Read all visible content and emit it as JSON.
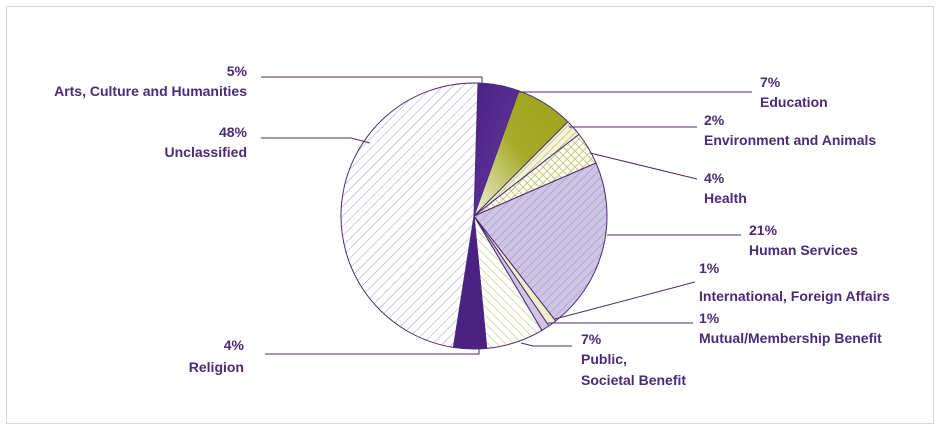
{
  "chart_data": {
    "type": "pie",
    "title": "",
    "colors": {
      "dark_purple": "#4b2183",
      "olive": "#9ba11a",
      "light_lavender": "#cdc5e3",
      "cream": "#eeeec8",
      "line": "#4b2a7a"
    },
    "slices": [
      {
        "label": "Arts, Culture and Humanities",
        "percent": "5%",
        "value": 5
      },
      {
        "label": "Education",
        "percent": "7%",
        "value": 7
      },
      {
        "label": "Environment and Animals",
        "percent": "2%",
        "value": 2
      },
      {
        "label": "Health",
        "percent": "4%",
        "value": 4
      },
      {
        "label": "Human Services",
        "percent": "21%",
        "value": 21
      },
      {
        "label": "International, Foreign Affairs",
        "percent": "1%",
        "value": 1
      },
      {
        "label": "Mutual/Membership Benefit",
        "percent": "1%",
        "value": 1
      },
      {
        "label": "Public, Societal Benefit",
        "percent": "7%",
        "value": 7
      },
      {
        "label": "Religion",
        "percent": "4%",
        "value": 4
      },
      {
        "label": "Unclassified",
        "percent": "48%",
        "value": 48
      }
    ]
  }
}
